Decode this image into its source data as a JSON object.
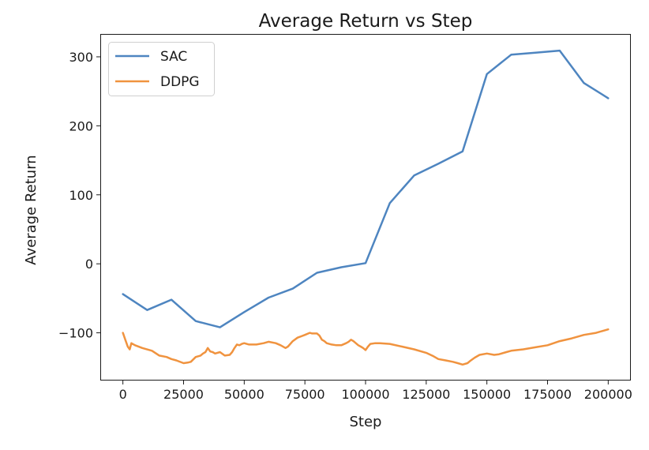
{
  "chart_data": {
    "type": "line",
    "title": "Average Return vs Step",
    "xlabel": "Step",
    "ylabel": "Average Return",
    "xlim": [
      -9000,
      209000
    ],
    "ylim": [
      -168,
      332
    ],
    "xticks": [
      0,
      25000,
      50000,
      75000,
      100000,
      125000,
      150000,
      175000,
      200000
    ],
    "yticks": [
      -100,
      0,
      100,
      200,
      300
    ],
    "grid": false,
    "legend": "top-left",
    "series": [
      {
        "name": "SAC",
        "color": "#4e85c0",
        "x": [
          0,
          10000,
          20000,
          30000,
          40000,
          50000,
          60000,
          70000,
          80000,
          90000,
          100000,
          110000,
          120000,
          130000,
          140000,
          150000,
          160000,
          170000,
          180000,
          190000,
          200000
        ],
        "y": [
          -44,
          -67,
          -52,
          -83,
          -92,
          -70,
          -49,
          -36,
          -13,
          -5,
          1,
          88,
          128,
          145,
          163,
          275,
          303,
          306,
          309,
          262,
          240
        ]
      },
      {
        "name": "DDPG",
        "color": "#f0933f",
        "x": [
          0,
          1000,
          2000,
          2800,
          3500,
          5000,
          8000,
          12000,
          15000,
          18000,
          20000,
          22000,
          25000,
          27000,
          28000,
          30000,
          32000,
          33000,
          34000,
          35000,
          36000,
          37000,
          38000,
          40000,
          42000,
          44000,
          45000,
          46000,
          47000,
          48000,
          49000,
          50000,
          52000,
          55000,
          58000,
          60000,
          63000,
          65000,
          67000,
          68000,
          70000,
          72000,
          75000,
          77000,
          78000,
          80000,
          81000,
          82000,
          83000,
          84000,
          86000,
          88000,
          90000,
          92000,
          93000,
          94000,
          95000,
          96000,
          97000,
          98000,
          99000,
          100000,
          101000,
          102000,
          104000,
          106000,
          110000,
          115000,
          120000,
          125000,
          128000,
          130000,
          133000,
          136000,
          138000,
          140000,
          142000,
          143000,
          145000,
          147000,
          150000,
          153000,
          155000,
          158000,
          160000,
          165000,
          170000,
          175000,
          180000,
          185000,
          190000,
          195000,
          198000,
          200000
        ],
        "y": [
          -100,
          -110,
          -120,
          -124,
          -115,
          -118,
          -122,
          -126,
          -133,
          -135,
          -138,
          -140,
          -144,
          -143,
          -142,
          -135,
          -133,
          -130,
          -128,
          -122,
          -127,
          -128,
          -130,
          -128,
          -133,
          -132,
          -128,
          -122,
          -117,
          -118,
          -116,
          -115,
          -117,
          -117,
          -115,
          -113,
          -115,
          -118,
          -122,
          -120,
          -112,
          -107,
          -103,
          -100,
          -101,
          -101,
          -104,
          -110,
          -112,
          -115,
          -117,
          -118,
          -118,
          -115,
          -113,
          -110,
          -112,
          -115,
          -118,
          -120,
          -122,
          -125,
          -120,
          -116,
          -115,
          -115,
          -116,
          -120,
          -124,
          -129,
          -134,
          -138,
          -140,
          -142,
          -144,
          -146,
          -144,
          -141,
          -136,
          -132,
          -130,
          -132,
          -131,
          -128,
          -126,
          -124,
          -121,
          -118,
          -112,
          -108,
          -103,
          -100,
          -97,
          -95
        ]
      }
    ]
  }
}
